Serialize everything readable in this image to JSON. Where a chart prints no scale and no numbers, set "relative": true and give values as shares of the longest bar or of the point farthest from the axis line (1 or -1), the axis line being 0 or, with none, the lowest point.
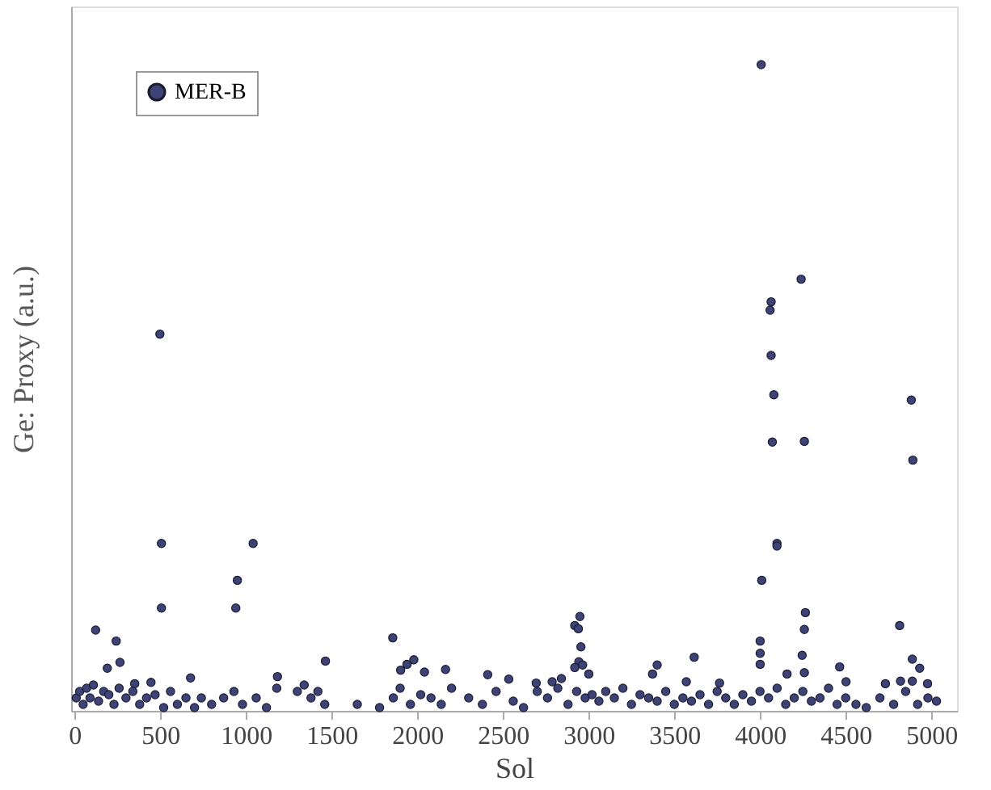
{
  "chart_data": {
    "type": "scatter",
    "relative": true,
    "xlabel": "Sol",
    "ylabel": "Ge: Proxy (a.u.)",
    "xlim": [
      -20,
      5150
    ],
    "xticks": [
      0,
      500,
      1000,
      1500,
      2000,
      2500,
      3000,
      3500,
      4000,
      4500,
      5000
    ],
    "grid": false,
    "legend": "top left",
    "marker": "circle",
    "series": [
      {
        "name": "MER-B",
        "color": "#3d4375",
        "x": [
          498,
          507,
          507,
          1042,
          950,
          941,
          4007,
          4240,
          4065,
          4059,
          4065,
          4081,
          4072,
          4259,
          4099,
          4099,
          4010,
          4883,
          4892,
          123,
          243,
          265,
          191,
          1857,
          1464,
          1980,
          1940,
          1903,
          2042,
          2165,
          2411,
          2534,
          1184,
          677,
          446,
          351,
          2949,
          2919,
          2940,
          2955,
          2943,
          2965,
          2919,
          3001,
          3616,
          3400,
          3373,
          4001,
          4001,
          4001,
          4265,
          4259,
          4246,
          4259,
          4158,
          4465,
          4815,
          4889,
          4932,
          4978,
          4820,
          4889,
          4732,
          4502,
          3764,
          3570,
          2694,
          2787,
          2841,
          10,
          30,
          50,
          70,
          90,
          110,
          140,
          170,
          200,
          230,
          260,
          300,
          340,
          380,
          420,
          470,
          520,
          560,
          600,
          650,
          700,
          740,
          800,
          870,
          930,
          980,
          1060,
          1120,
          1180,
          1300,
          1340,
          1380,
          1420,
          1460,
          1650,
          1780,
          1860,
          1900,
          1960,
          2020,
          2080,
          2140,
          2200,
          2300,
          2380,
          2460,
          2560,
          2620,
          2700,
          2760,
          2820,
          2880,
          2930,
          2980,
          3020,
          3060,
          3100,
          3150,
          3200,
          3250,
          3300,
          3350,
          3400,
          3450,
          3500,
          3550,
          3600,
          3650,
          3700,
          3750,
          3800,
          3850,
          3900,
          3950,
          4000,
          4050,
          4100,
          4150,
          4200,
          4250,
          4300,
          4350,
          4400,
          4450,
          4500,
          4560,
          4620,
          4700,
          4780,
          4850,
          4920,
          4980,
          5030
        ],
        "values": [
          0.583,
          0.259,
          0.159,
          0.259,
          0.202,
          0.159,
          1.0,
          0.668,
          0.633,
          0.62,
          0.55,
          0.489,
          0.416,
          0.417,
          0.259,
          0.255,
          0.202,
          0.481,
          0.388,
          0.125,
          0.108,
          0.075,
          0.066,
          0.113,
          0.077,
          0.079,
          0.072,
          0.063,
          0.06,
          0.064,
          0.056,
          0.049,
          0.053,
          0.051,
          0.044,
          0.042,
          0.146,
          0.132,
          0.127,
          0.099,
          0.076,
          0.071,
          0.067,
          0.057,
          0.083,
          0.071,
          0.057,
          0.108,
          0.089,
          0.072,
          0.152,
          0.126,
          0.086,
          0.059,
          0.057,
          0.068,
          0.132,
          0.08,
          0.066,
          0.042,
          0.046,
          0.046,
          0.042,
          0.045,
          0.043,
          0.045,
          0.043,
          0.045,
          0.05,
          0.02,
          0.03,
          0.01,
          0.035,
          0.02,
          0.04,
          0.015,
          0.03,
          0.025,
          0.01,
          0.035,
          0.02,
          0.03,
          0.01,
          0.02,
          0.025,
          0.005,
          0.03,
          0.01,
          0.02,
          0.005,
          0.02,
          0.01,
          0.02,
          0.03,
          0.01,
          0.02,
          0.005,
          0.035,
          0.03,
          0.04,
          0.02,
          0.03,
          0.01,
          0.01,
          0.005,
          0.02,
          0.035,
          0.01,
          0.025,
          0.02,
          0.01,
          0.035,
          0.02,
          0.01,
          0.03,
          0.015,
          0.005,
          0.03,
          0.02,
          0.035,
          0.01,
          0.03,
          0.02,
          0.025,
          0.015,
          0.03,
          0.02,
          0.035,
          0.01,
          0.025,
          0.02,
          0.015,
          0.03,
          0.01,
          0.02,
          0.015,
          0.025,
          0.01,
          0.03,
          0.02,
          0.01,
          0.025,
          0.015,
          0.03,
          0.02,
          0.035,
          0.01,
          0.02,
          0.03,
          0.015,
          0.02,
          0.035,
          0.01,
          0.02,
          0.01,
          0.005,
          0.02,
          0.01,
          0.03,
          0.01,
          0.02,
          0.015
        ]
      }
    ]
  }
}
